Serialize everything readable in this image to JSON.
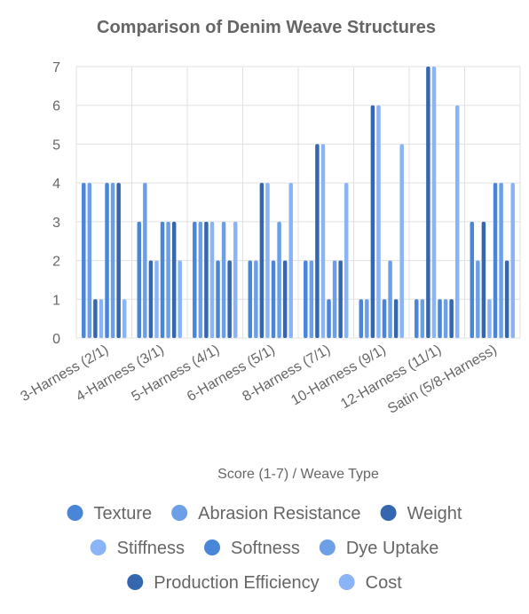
{
  "chart_data": {
    "type": "bar",
    "title": "Comparison of Denim Weave Structures",
    "xlabel": "Score (1-7) / Weave Type",
    "ylabel": "",
    "ylim": [
      0,
      7
    ],
    "yticks": [
      "0",
      "1",
      "2",
      "3",
      "4",
      "5",
      "6",
      "7"
    ],
    "grid": true,
    "legend_position": "bottom",
    "categories": [
      "3-Harness (2/1)",
      "4-Harness (3/1)",
      "5-Harness (4/1)",
      "6-Harness (5/1)",
      "8-Harness (7/1)",
      "10-Harness (9/1)",
      "12-Harness (11/1)",
      "Satin (5/8-Harness)"
    ],
    "series": [
      {
        "name": "Texture",
        "color": "#4a86d8",
        "values": [
          4,
          3,
          3,
          2,
          2,
          1,
          1,
          3
        ]
      },
      {
        "name": "Abrasion Resistance",
        "color": "#6c9fe6",
        "values": [
          4,
          4,
          3,
          2,
          2,
          1,
          1,
          2
        ]
      },
      {
        "name": "Weight",
        "color": "#3467b0",
        "values": [
          1,
          2,
          3,
          4,
          5,
          6,
          7,
          3
        ]
      },
      {
        "name": "Stiffness",
        "color": "#8ab4f6",
        "values": [
          1,
          2,
          3,
          4,
          5,
          6,
          7,
          1
        ]
      },
      {
        "name": "Softness",
        "color": "#4a86d8",
        "values": [
          4,
          3,
          2,
          2,
          1,
          1,
          1,
          4
        ]
      },
      {
        "name": "Dye Uptake",
        "color": "#6c9fe6",
        "values": [
          4,
          3,
          3,
          3,
          2,
          2,
          1,
          4
        ]
      },
      {
        "name": "Production Efficiency",
        "color": "#3467b0",
        "values": [
          4,
          3,
          2,
          2,
          2,
          1,
          1,
          2
        ]
      },
      {
        "name": "Cost",
        "color": "#8ab4f6",
        "values": [
          1,
          2,
          3,
          4,
          4,
          5,
          6,
          4
        ]
      }
    ]
  }
}
